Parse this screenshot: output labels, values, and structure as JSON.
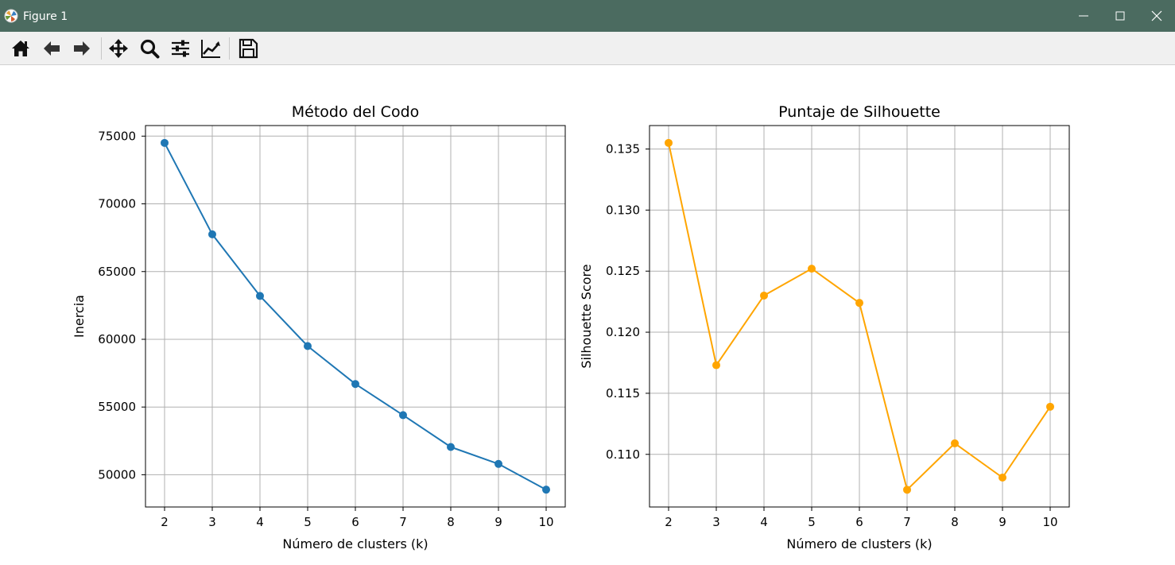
{
  "window": {
    "title": "Figure 1"
  },
  "toolbar": {
    "buttons": [
      {
        "icon": "home-icon"
      },
      {
        "icon": "back-arrow-icon"
      },
      {
        "icon": "forward-arrow-icon"
      },
      {
        "icon": "pan-icon"
      },
      {
        "icon": "zoom-icon"
      },
      {
        "icon": "configure-subplots-icon"
      },
      {
        "icon": "edit-axes-icon"
      },
      {
        "icon": "save-icon"
      }
    ]
  },
  "chart_data": [
    {
      "type": "line",
      "title": "Método del Codo",
      "xlabel": "Número de clusters (k)",
      "ylabel": "Inercia",
      "x": [
        2,
        3,
        4,
        5,
        6,
        7,
        8,
        9,
        10
      ],
      "y": [
        74500,
        67750,
        63200,
        59500,
        56700,
        54400,
        52050,
        50800,
        48900
      ],
      "xticks": [
        "2",
        "3",
        "4",
        "5",
        "6",
        "7",
        "8",
        "9",
        "10"
      ],
      "yticks": [
        50000,
        55000,
        60000,
        65000,
        70000,
        75000
      ],
      "ytick_labels": [
        "50000",
        "55000",
        "60000",
        "65000",
        "70000",
        "75000"
      ],
      "xlim": [
        1.6,
        10.4
      ],
      "ylim": [
        47620,
        75780
      ],
      "grid": true,
      "color": "#1f77b4",
      "marker": "circle"
    },
    {
      "type": "line",
      "title": "Puntaje de Silhouette",
      "xlabel": "Número de clusters (k)",
      "ylabel": "Silhouette Score",
      "x": [
        2,
        3,
        4,
        5,
        6,
        7,
        8,
        9,
        10
      ],
      "y": [
        0.1355,
        0.1173,
        0.123,
        0.1252,
        0.1224,
        0.1071,
        0.1109,
        0.1081,
        0.1139
      ],
      "xticks": [
        "2",
        "3",
        "4",
        "5",
        "6",
        "7",
        "8",
        "9",
        "10"
      ],
      "yticks": [
        0.11,
        0.115,
        0.12,
        0.125,
        0.13,
        0.135
      ],
      "ytick_labels": [
        "0.110",
        "0.115",
        "0.120",
        "0.125",
        "0.130",
        "0.135"
      ],
      "xlim": [
        1.6,
        10.4
      ],
      "ylim": [
        0.10569,
        0.13692
      ],
      "grid": true,
      "color": "#ffa500",
      "marker": "circle"
    }
  ]
}
